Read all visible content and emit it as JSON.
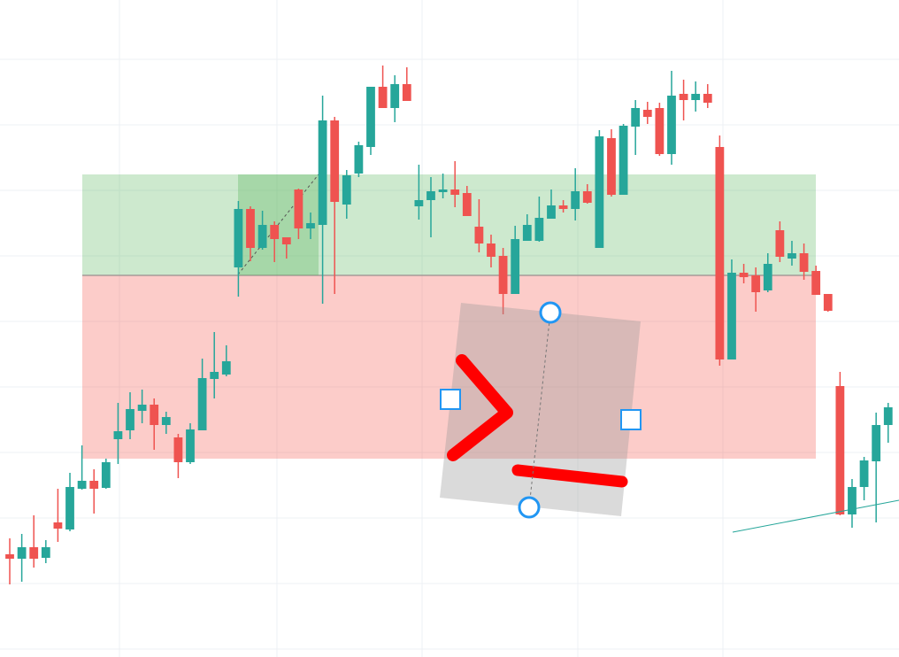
{
  "chart_data": {
    "type": "candlestick",
    "x": [
      0,
      1,
      2,
      3,
      4,
      5,
      6,
      7,
      8,
      9,
      10,
      11,
      12,
      13,
      14,
      15,
      16,
      17,
      18,
      19,
      20,
      21,
      22,
      23,
      24,
      25,
      26,
      27,
      28,
      29,
      30,
      31,
      32,
      33,
      34,
      35,
      36,
      37,
      38,
      39,
      40,
      41,
      42,
      43,
      44,
      45,
      46,
      47,
      48,
      49,
      50,
      51,
      52,
      53,
      54,
      55,
      56,
      57,
      58,
      59,
      60,
      61,
      62,
      63,
      64,
      65,
      66,
      67,
      68,
      69,
      70,
      71,
      72,
      73
    ],
    "open": [
      116,
      111,
      124,
      112,
      152,
      144,
      190,
      199,
      191,
      246,
      256,
      278,
      285,
      262,
      248,
      220,
      256,
      314,
      319,
      440,
      506,
      462,
      488,
      474,
      528,
      484,
      488,
      606,
      511,
      546,
      576,
      644,
      620,
      647,
      509,
      516,
      525,
      528,
      524,
      486,
      467,
      453,
      410,
      470,
      470,
      495,
      510,
      506,
      526,
      462,
      586,
      522,
      599,
      618,
      620,
      568,
      636,
      629,
      636,
      576,
      336,
      434,
      431,
      414,
      482,
      450,
      456,
      436,
      410,
      306,
      161,
      192,
      221,
      262
    ],
    "high": [
      134,
      139,
      160,
      132,
      190,
      208,
      239,
      212,
      224,
      287,
      299,
      302,
      292,
      277,
      252,
      264,
      337,
      367,
      352,
      515,
      509,
      504,
      492,
      474,
      529,
      502,
      634,
      610,
      550,
      582,
      644,
      668,
      657,
      666,
      556,
      542,
      546,
      560,
      532,
      517,
      477,
      462,
      487,
      500,
      520,
      528,
      516,
      552,
      534,
      595,
      596,
      602,
      629,
      627,
      626,
      662,
      652,
      650,
      647,
      589,
      449,
      444,
      440,
      456,
      492,
      470,
      467,
      442,
      410,
      322,
      201,
      226,
      276,
      287
    ],
    "low": [
      82,
      85,
      101,
      106,
      130,
      142,
      189,
      162,
      190,
      218,
      246,
      264,
      234,
      252,
      202,
      218,
      256,
      292,
      317,
      407,
      447,
      460,
      446,
      450,
      472,
      472,
      399,
      410,
      495,
      542,
      567,
      620,
      604,
      628,
      494,
      474,
      518,
      508,
      498,
      457,
      440,
      387,
      410,
      470,
      469,
      495,
      502,
      493,
      512,
      462,
      520,
      522,
      567,
      602,
      566,
      556,
      606,
      616,
      620,
      329,
      336,
      422,
      390,
      412,
      446,
      442,
      426,
      409,
      390,
      160,
      146,
      177,
      152,
      242
    ],
    "close": [
      111,
      124,
      111,
      124,
      145,
      192,
      199,
      190,
      220,
      255,
      280,
      285,
      262,
      271,
      220,
      257,
      315,
      322,
      334,
      506,
      462,
      488,
      472,
      466,
      484,
      490,
      606,
      514,
      544,
      578,
      644,
      620,
      647,
      628,
      516,
      526,
      528,
      522,
      498,
      467,
      452,
      410,
      472,
      488,
      496,
      510,
      506,
      526,
      513,
      588,
      522,
      600,
      620,
      610,
      568,
      634,
      629,
      636,
      626,
      336,
      434,
      429,
      412,
      444,
      452,
      456,
      435,
      409,
      391,
      161,
      192,
      222,
      262,
      282
    ],
    "xlim": [
      -0.81,
      73.9
    ],
    "ylim": [
      0,
      742
    ],
    "up_color": "#26a69a",
    "down_color": "#ef5350"
  }
}
